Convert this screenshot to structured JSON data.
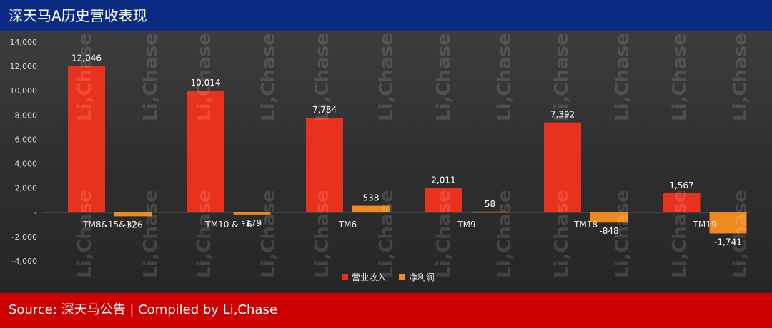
{
  "title": "深天马A历史营收表现",
  "footer": "Source: 深天马公告 | Compiled by Li,Chase",
  "watermark": "Li,Chase",
  "colors": {
    "header": "#0a2a82",
    "footer": "#cc0000",
    "revenue": "#e8321e",
    "profit": "#ee8a1e"
  },
  "chart_data": {
    "type": "bar",
    "categories": [
      "TM8&15&17",
      "TM10 & 16",
      "TM6",
      "TM9",
      "TM18",
      "TM19"
    ],
    "series": [
      {
        "name": "营业收入",
        "values": [
          12046,
          10014,
          7784,
          2011,
          7392,
          1567
        ],
        "labels": [
          "12,046",
          "10,014",
          "7,784",
          "2,011",
          "7,392",
          "1,567"
        ]
      },
      {
        "name": "净利润",
        "values": [
          -326,
          -179,
          538,
          58,
          -848,
          -1741
        ],
        "labels": [
          "-326",
          "-179",
          "538",
          "58",
          "-848",
          "-1,741"
        ]
      }
    ],
    "ylim": [
      -4000,
      14000
    ],
    "yticks": [
      14000,
      12000,
      10000,
      8000,
      6000,
      4000,
      2000,
      0,
      -2000,
      -4000
    ],
    "ytick_labels": [
      "14,000",
      "12,000",
      "10,000",
      "8,000",
      "6,000",
      "4,000",
      "2,000",
      "-",
      "-2,000",
      "-4,000"
    ],
    "legend_position": "bottom-center",
    "grid": false
  }
}
